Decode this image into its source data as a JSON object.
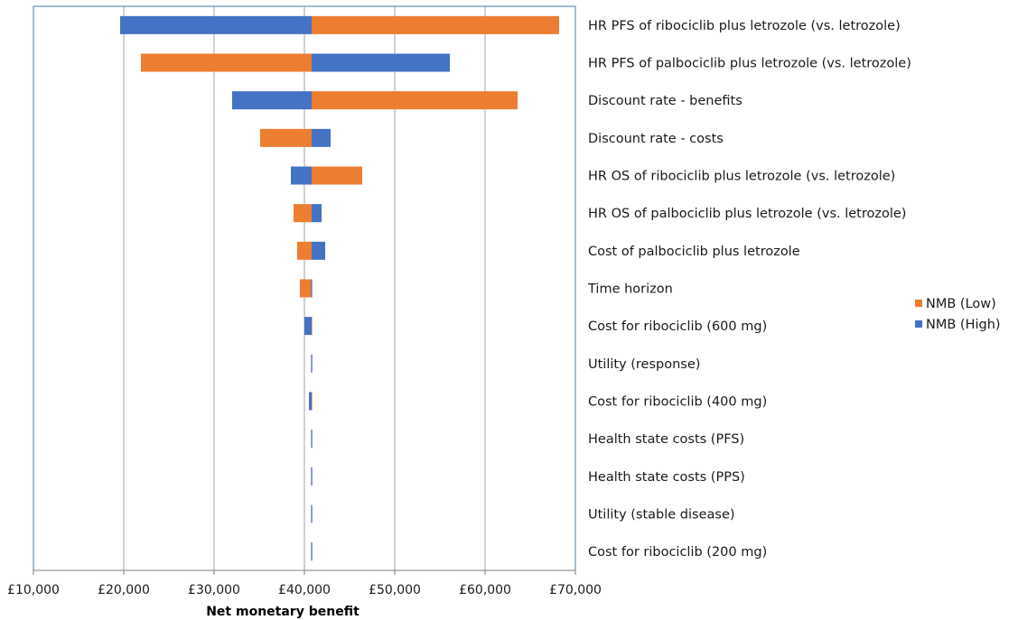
{
  "chart_data": {
    "type": "bar",
    "orientation": "horizontal",
    "variant": "tornado",
    "base_value": 40800,
    "xlabel": "Net monetary benefit",
    "xlim": [
      10000,
      70000
    ],
    "xticks": [
      10000,
      20000,
      30000,
      40000,
      50000,
      60000,
      70000
    ],
    "xtick_labels": [
      "£10,000",
      "£20,000",
      "£30,000",
      "£40,000",
      "£50,000",
      "£60,000",
      "£70,000"
    ],
    "grid": "vertical",
    "legend_position": "right",
    "categories": [
      "HR PFS of ribociclib plus letrozole (vs. letrozole)",
      "HR PFS of palbociclib plus letrozole (vs. letrozole)",
      "Discount rate - benefits",
      "Discount rate - costs",
      "HR OS of ribociclib plus letrozole (vs. letrozole)",
      "HR OS of palbociclib plus letrozole (vs. letrozole)",
      "Cost of palbociclib plus letrozole",
      "Time horizon",
      "Cost for ribociclib (600 mg)",
      "Utility (response)",
      "Cost for ribociclib (400 mg)",
      "Health state costs (PFS)",
      "Health state costs (PPS)",
      "Utility (stable disease)",
      "Cost for ribociclib (200 mg)"
    ],
    "series": [
      {
        "name": "NMB (Low)",
        "color": "#ED7D31",
        "values": [
          68200,
          21900,
          63600,
          35100,
          46400,
          38800,
          39200,
          39500,
          40800,
          40900,
          40800,
          40900,
          40900,
          40800,
          40800
        ]
      },
      {
        "name": "NMB (High)",
        "color": "#4472C4",
        "values": [
          19600,
          56100,
          32000,
          42900,
          38500,
          41900,
          42300,
          40800,
          40000,
          40700,
          40500,
          40700,
          40750,
          40900,
          40850
        ]
      }
    ],
    "legend_order": [
      "NMB (Low)",
      "NMB (High)"
    ]
  }
}
